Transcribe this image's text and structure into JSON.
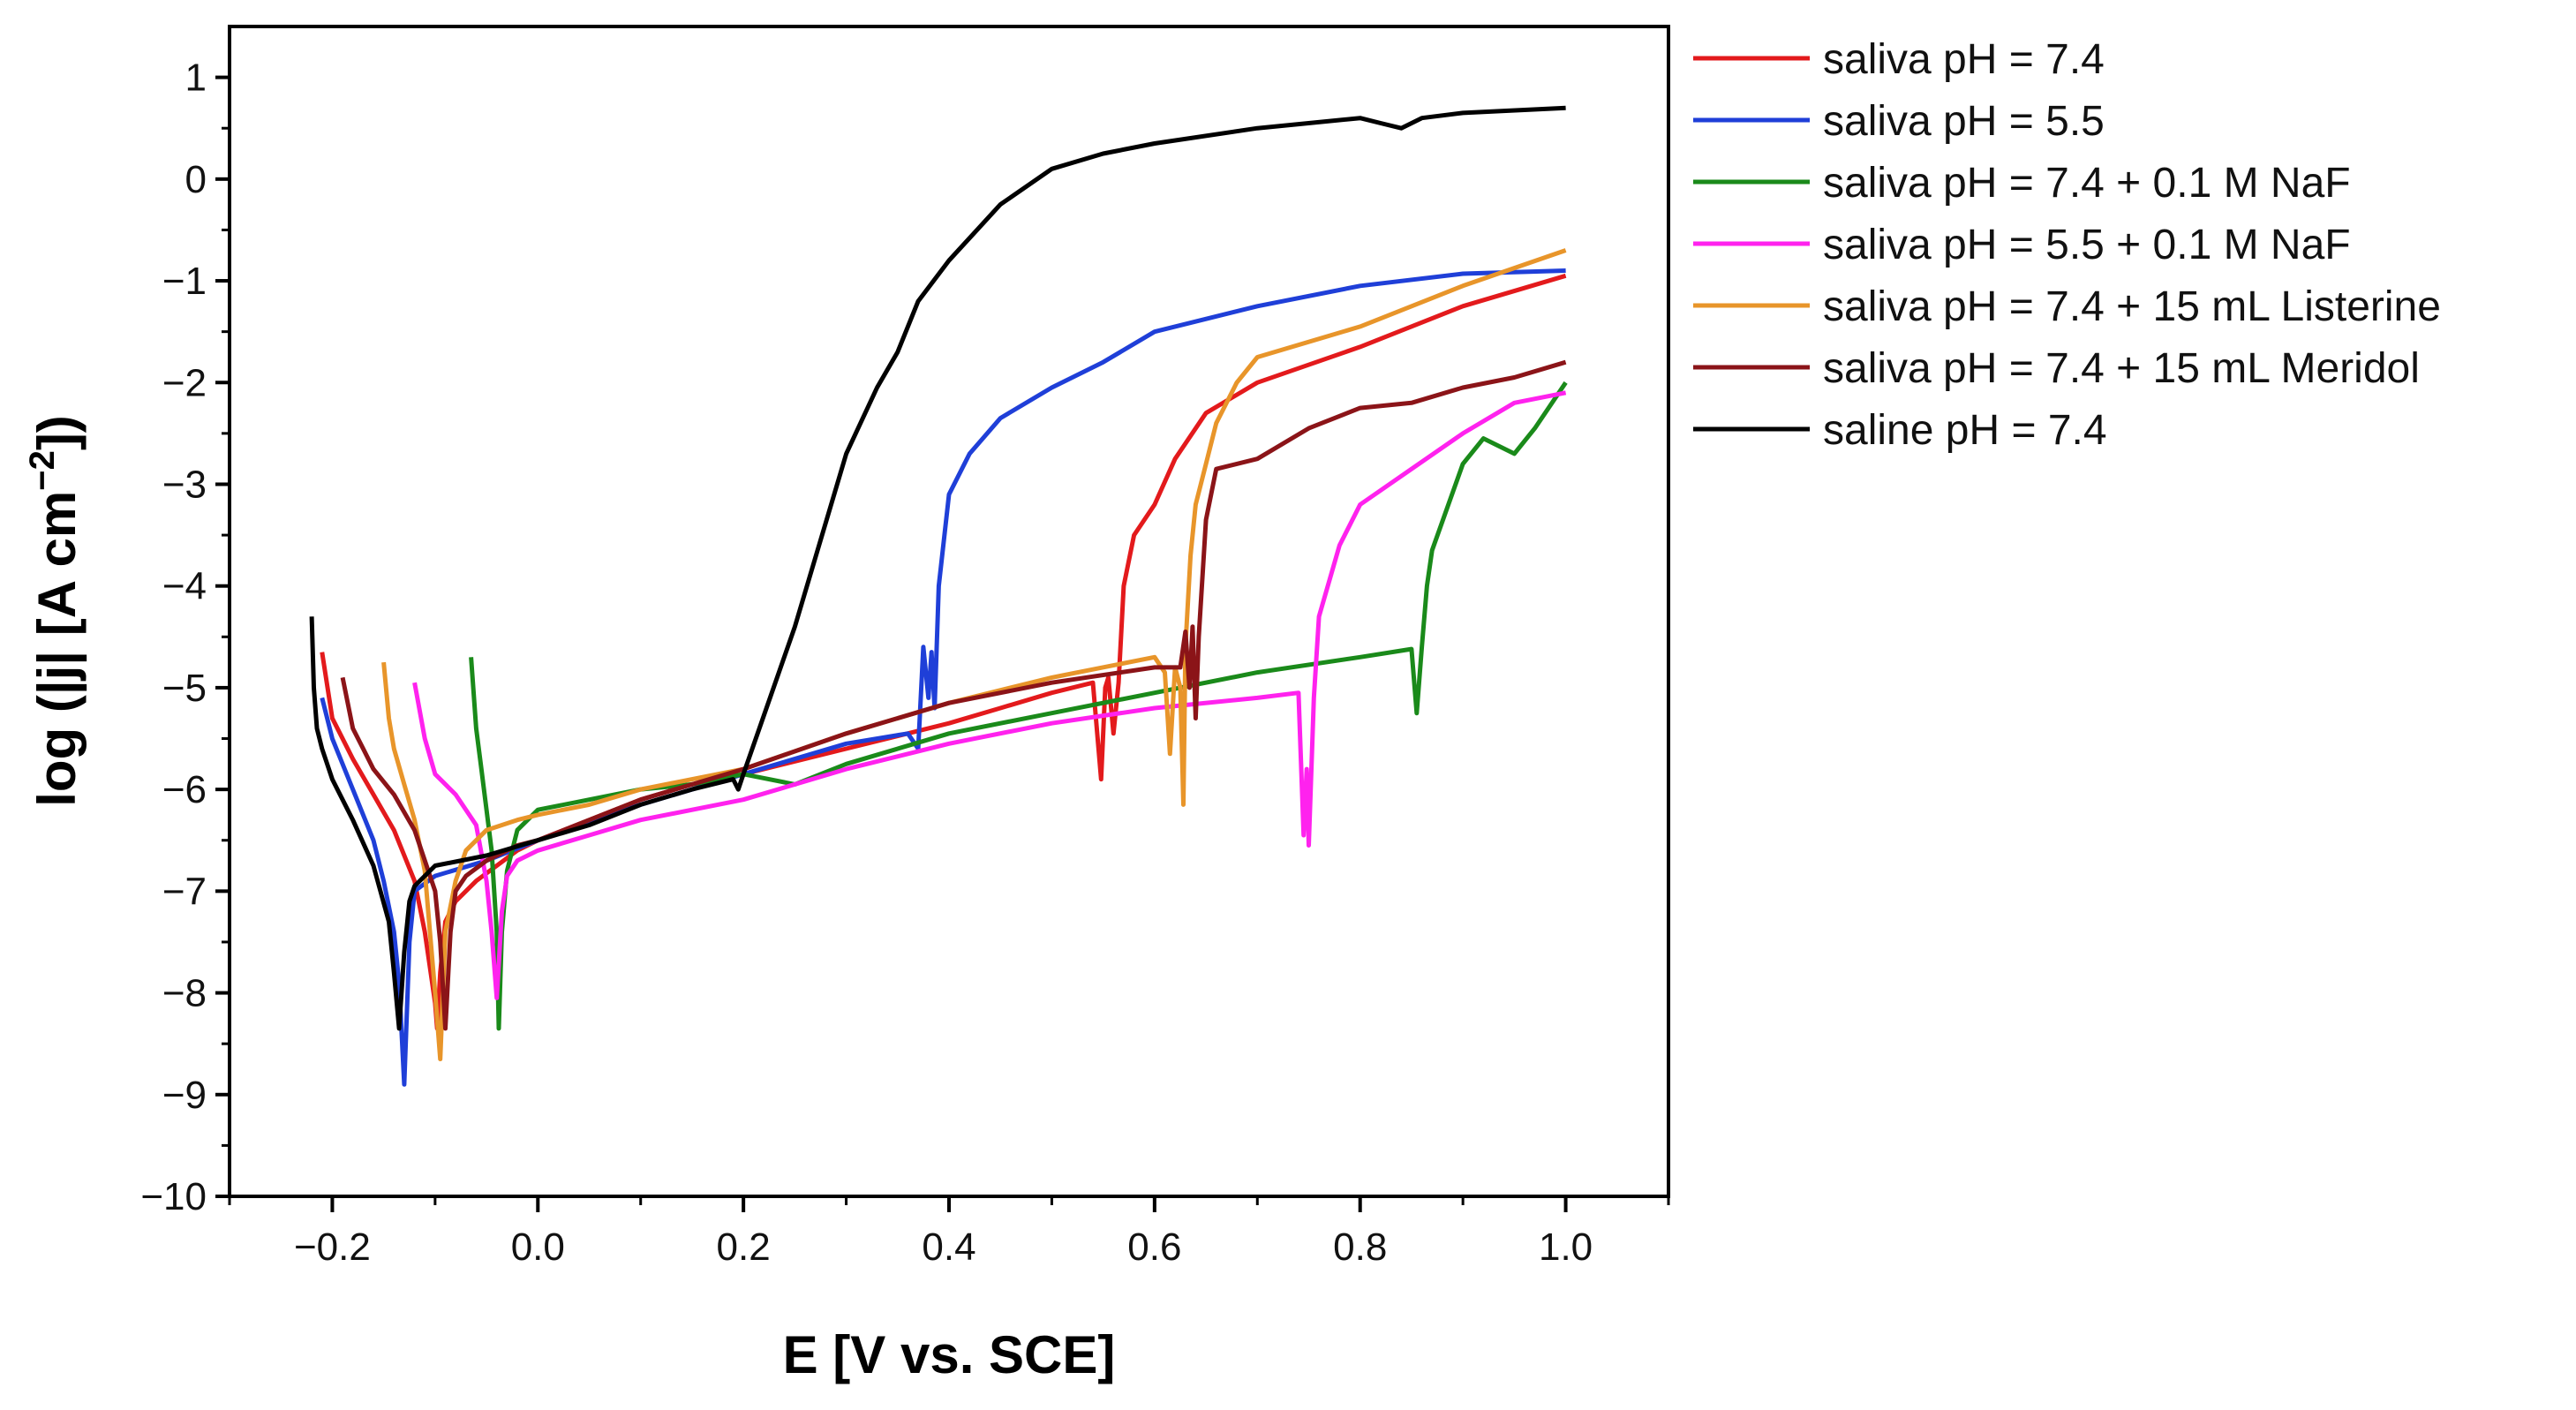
{
  "chart_data": {
    "type": "line",
    "xlabel": "E [V vs. SCE]",
    "ylabel_parts": [
      "log (|j| [A cm",
      "−2",
      "])"
    ],
    "xlim": [
      -0.3,
      1.1
    ],
    "ylim": [
      -10,
      1.5
    ],
    "x_ticks": [
      -0.2,
      0.0,
      0.2,
      0.4,
      0.6,
      0.8,
      1.0
    ],
    "x_tick_labels": [
      "−0.2",
      "0.0",
      "0.2",
      "0.4",
      "0.6",
      "0.8",
      "1.0"
    ],
    "y_ticks": [
      1,
      0,
      -1,
      -2,
      -3,
      -4,
      -5,
      -6,
      -7,
      -8,
      -9,
      -10
    ],
    "y_tick_labels": [
      "1",
      "0",
      "−1",
      "−2",
      "−3",
      "−4",
      "−5",
      "−6",
      "−7",
      "−8",
      "−9",
      "−10"
    ],
    "grid": false,
    "legend_position": "right",
    "series": [
      {
        "name": "saliva pH = 7.4",
        "color": "#e31a1c",
        "x": [
          -0.21,
          -0.2,
          -0.18,
          -0.16,
          -0.14,
          -0.12,
          -0.11,
          -0.1,
          -0.098,
          -0.095,
          -0.09,
          -0.08,
          -0.06,
          -0.04,
          -0.02,
          0.0,
          0.05,
          0.1,
          0.15,
          0.2,
          0.3,
          0.4,
          0.45,
          0.5,
          0.54,
          0.548,
          0.552,
          0.555,
          0.56,
          0.565,
          0.57,
          0.58,
          0.6,
          0.62,
          0.65,
          0.7,
          0.8,
          0.9,
          1.0
        ],
        "y": [
          -4.65,
          -5.3,
          -5.7,
          -6.05,
          -6.4,
          -6.9,
          -7.4,
          -8.1,
          -8.35,
          -7.8,
          -7.3,
          -7.1,
          -6.9,
          -6.75,
          -6.6,
          -6.5,
          -6.3,
          -6.1,
          -5.95,
          -5.85,
          -5.6,
          -5.35,
          -5.2,
          -5.05,
          -4.95,
          -5.9,
          -5.0,
          -4.9,
          -5.45,
          -4.95,
          -4.0,
          -3.5,
          -3.2,
          -2.75,
          -2.3,
          -2.0,
          -1.65,
          -1.25,
          -0.95
        ]
      },
      {
        "name": "saliva pH = 5.5",
        "color": "#1f3fd8",
        "x": [
          -0.21,
          -0.2,
          -0.18,
          -0.16,
          -0.15,
          -0.14,
          -0.135,
          -0.13,
          -0.125,
          -0.12,
          -0.1,
          -0.05,
          0.0,
          0.1,
          0.2,
          0.3,
          0.36,
          0.37,
          0.375,
          0.38,
          0.383,
          0.386,
          0.39,
          0.4,
          0.42,
          0.45,
          0.5,
          0.55,
          0.6,
          0.7,
          0.8,
          0.9,
          1.0
        ],
        "y": [
          -5.1,
          -5.5,
          -6.0,
          -6.5,
          -6.9,
          -7.4,
          -7.9,
          -8.9,
          -7.5,
          -7.0,
          -6.85,
          -6.7,
          -6.5,
          -6.15,
          -5.85,
          -5.55,
          -5.45,
          -5.6,
          -4.6,
          -5.1,
          -4.65,
          -5.2,
          -4.0,
          -3.1,
          -2.7,
          -2.35,
          -2.05,
          -1.8,
          -1.5,
          -1.25,
          -1.05,
          -0.93,
          -0.9
        ]
      },
      {
        "name": "saliva pH = 7.4 + 0.1 M NaF",
        "color": "#1a8a1a",
        "x": [
          -0.065,
          -0.06,
          -0.055,
          -0.05,
          -0.045,
          -0.04,
          -0.038,
          -0.035,
          -0.03,
          -0.02,
          0.0,
          0.05,
          0.1,
          0.15,
          0.2,
          0.25,
          0.3,
          0.4,
          0.5,
          0.6,
          0.7,
          0.8,
          0.85,
          0.855,
          0.86,
          0.865,
          0.87,
          0.9,
          0.92,
          0.95,
          0.97,
          1.0
        ],
        "y": [
          -4.7,
          -5.4,
          -5.8,
          -6.2,
          -6.6,
          -7.4,
          -8.35,
          -7.4,
          -6.8,
          -6.4,
          -6.2,
          -6.1,
          -6.0,
          -5.95,
          -5.85,
          -5.95,
          -5.75,
          -5.45,
          -5.25,
          -5.05,
          -4.85,
          -4.7,
          -4.62,
          -5.25,
          -4.6,
          -4.0,
          -3.65,
          -2.8,
          -2.55,
          -2.7,
          -2.45,
          -2.0
        ]
      },
      {
        "name": "saliva pH = 5.5 + 0.1 M NaF",
        "color": "#ff22ee",
        "x": [
          -0.12,
          -0.11,
          -0.1,
          -0.08,
          -0.06,
          -0.05,
          -0.045,
          -0.04,
          -0.035,
          -0.03,
          -0.02,
          0.0,
          0.05,
          0.1,
          0.2,
          0.3,
          0.4,
          0.5,
          0.6,
          0.7,
          0.74,
          0.745,
          0.748,
          0.75,
          0.755,
          0.76,
          0.78,
          0.8,
          0.85,
          0.9,
          0.95,
          1.0
        ],
        "y": [
          -4.95,
          -5.5,
          -5.85,
          -6.05,
          -6.35,
          -6.9,
          -7.4,
          -8.05,
          -7.2,
          -6.85,
          -6.7,
          -6.6,
          -6.45,
          -6.3,
          -6.1,
          -5.8,
          -5.55,
          -5.35,
          -5.2,
          -5.1,
          -5.05,
          -6.45,
          -5.8,
          -6.55,
          -5.1,
          -4.3,
          -3.6,
          -3.2,
          -2.85,
          -2.5,
          -2.2,
          -2.1
        ]
      },
      {
        "name": "saliva pH = 7.4 + 15 mL Listerine",
        "color": "#e8952a",
        "x": [
          -0.15,
          -0.145,
          -0.14,
          -0.13,
          -0.12,
          -0.11,
          -0.105,
          -0.1,
          -0.095,
          -0.09,
          -0.08,
          -0.07,
          -0.05,
          -0.02,
          0.0,
          0.05,
          0.1,
          0.2,
          0.3,
          0.4,
          0.5,
          0.6,
          0.61,
          0.615,
          0.62,
          0.625,
          0.628,
          0.63,
          0.635,
          0.64,
          0.65,
          0.66,
          0.68,
          0.7,
          0.8,
          0.9,
          1.0
        ],
        "y": [
          -4.75,
          -5.3,
          -5.6,
          -5.95,
          -6.3,
          -6.8,
          -7.4,
          -8.0,
          -8.65,
          -7.4,
          -6.9,
          -6.6,
          -6.4,
          -6.3,
          -6.25,
          -6.15,
          -6.0,
          -5.8,
          -5.45,
          -5.15,
          -4.9,
          -4.7,
          -4.85,
          -5.65,
          -4.8,
          -5.0,
          -6.15,
          -4.6,
          -3.7,
          -3.2,
          -2.8,
          -2.4,
          -2.0,
          -1.75,
          -1.45,
          -1.05,
          -0.7
        ]
      },
      {
        "name": "saliva pH = 7.4 + 15 mL Meridol",
        "color": "#8b1418",
        "x": [
          -0.19,
          -0.18,
          -0.17,
          -0.16,
          -0.14,
          -0.12,
          -0.1,
          -0.095,
          -0.09,
          -0.085,
          -0.08,
          -0.07,
          -0.05,
          -0.02,
          0.0,
          0.05,
          0.1,
          0.2,
          0.3,
          0.4,
          0.5,
          0.6,
          0.625,
          0.63,
          0.634,
          0.637,
          0.64,
          0.643,
          0.65,
          0.66,
          0.7,
          0.75,
          0.8,
          0.85,
          0.9,
          0.95,
          1.0
        ],
        "y": [
          -4.9,
          -5.4,
          -5.6,
          -5.8,
          -6.05,
          -6.4,
          -7.0,
          -7.5,
          -8.35,
          -7.4,
          -7.0,
          -6.85,
          -6.7,
          -6.55,
          -6.5,
          -6.3,
          -6.1,
          -5.8,
          -5.45,
          -5.15,
          -4.95,
          -4.8,
          -4.8,
          -4.45,
          -5.0,
          -4.4,
          -5.3,
          -4.5,
          -3.35,
          -2.85,
          -2.75,
          -2.45,
          -2.25,
          -2.2,
          -2.05,
          -1.95,
          -1.8
        ]
      },
      {
        "name": "saline pH = 7.4",
        "color": "#000000",
        "x": [
          -0.22,
          -0.218,
          -0.215,
          -0.21,
          -0.2,
          -0.18,
          -0.16,
          -0.145,
          -0.14,
          -0.135,
          -0.13,
          -0.125,
          -0.12,
          -0.1,
          -0.05,
          0.0,
          0.05,
          0.1,
          0.15,
          0.19,
          0.195,
          0.2,
          0.25,
          0.3,
          0.33,
          0.35,
          0.37,
          0.4,
          0.45,
          0.5,
          0.55,
          0.6,
          0.7,
          0.8,
          0.82,
          0.84,
          0.86,
          0.9,
          1.0
        ],
        "y": [
          -4.3,
          -5.0,
          -5.4,
          -5.6,
          -5.9,
          -6.3,
          -6.75,
          -7.3,
          -7.8,
          -8.35,
          -7.6,
          -7.1,
          -6.95,
          -6.75,
          -6.65,
          -6.5,
          -6.35,
          -6.15,
          -6.0,
          -5.9,
          -6.0,
          -5.85,
          -4.4,
          -2.7,
          -2.05,
          -1.7,
          -1.2,
          -0.8,
          -0.25,
          0.1,
          0.25,
          0.35,
          0.5,
          0.6,
          0.55,
          0.5,
          0.6,
          0.65,
          0.7
        ]
      }
    ]
  }
}
